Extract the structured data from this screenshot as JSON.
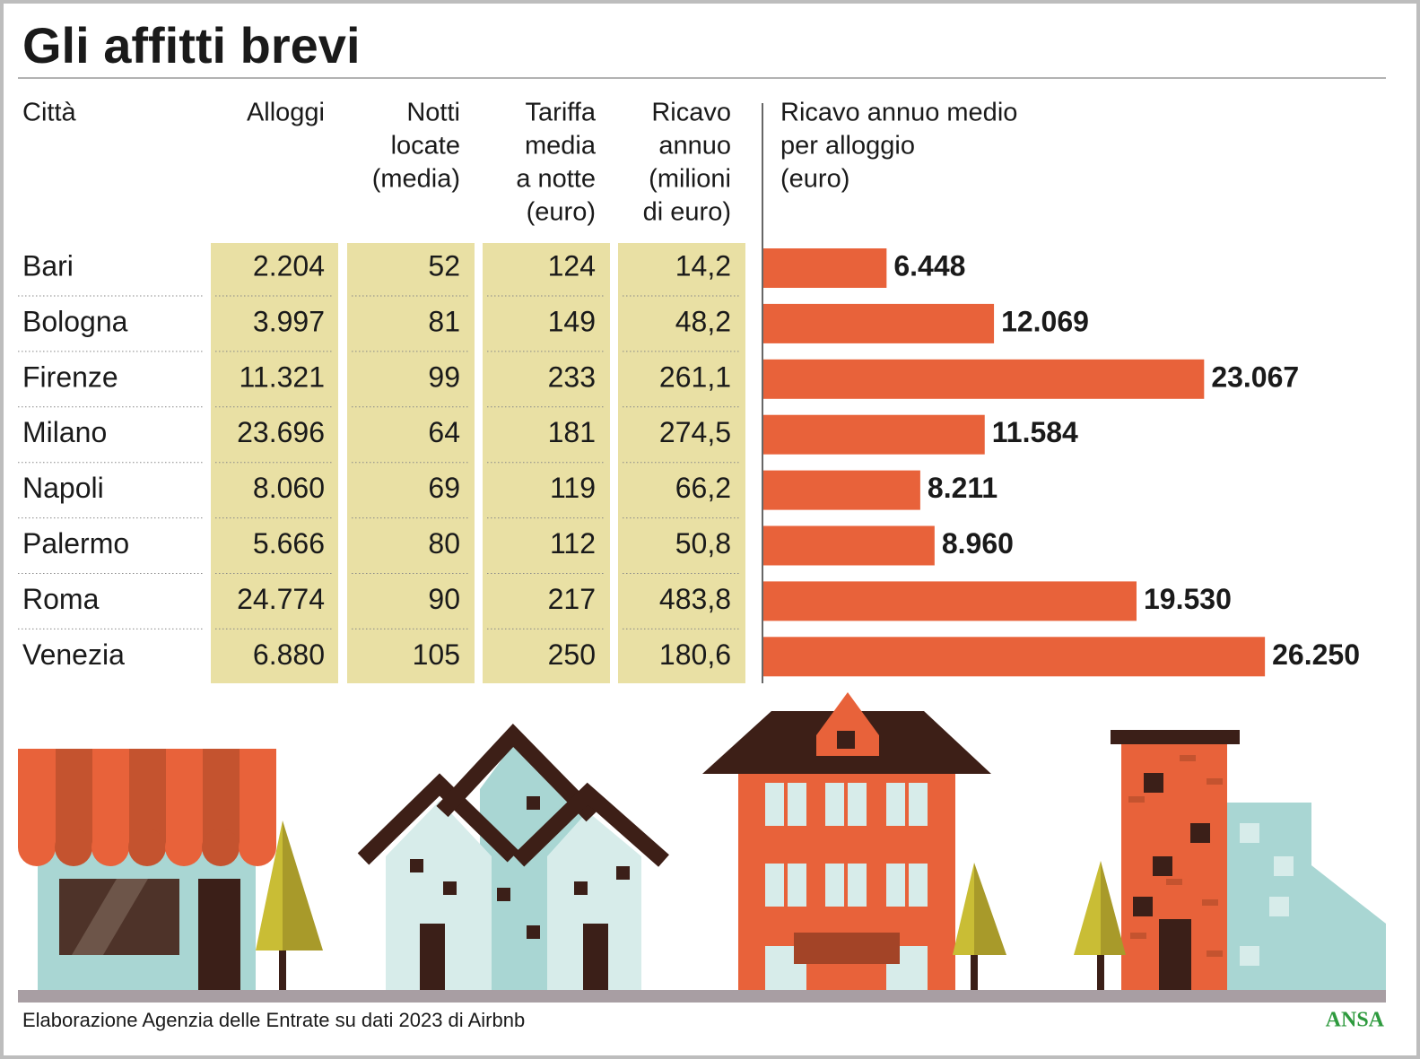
{
  "title": "Gli affitti brevi",
  "table": {
    "headers": [
      [
        "Città"
      ],
      [
        "Alloggi"
      ],
      [
        "Notti",
        "locate",
        "(media)"
      ],
      [
        "Tariffa",
        "media",
        "a notte",
        "(euro)"
      ],
      [
        "Ricavo",
        "annuo",
        "(milioni",
        "di euro)"
      ]
    ],
    "rows": [
      [
        "2.204",
        "52",
        "124",
        "14,2"
      ],
      [
        "3.997",
        "81",
        "149",
        "48,2"
      ],
      [
        "11.321",
        "99",
        "233",
        "261,1"
      ],
      [
        "23.696",
        "64",
        "181",
        "274,5"
      ],
      [
        "8.060",
        "69",
        "119",
        "66,2"
      ],
      [
        "5.666",
        "80",
        "112",
        "50,8"
      ],
      [
        "24.774",
        "90",
        "217",
        "483,8"
      ],
      [
        "6.880",
        "105",
        "250",
        "180,6"
      ]
    ]
  },
  "chart_data": {
    "type": "bar",
    "orientation": "horizontal",
    "title": [
      "Ricavo annuo medio",
      "per alloggio",
      "(euro)"
    ],
    "categories": [
      "Bari",
      "Bologna",
      "Firenze",
      "Milano",
      "Napoli",
      "Palermo",
      "Roma",
      "Venezia"
    ],
    "values": [
      6448,
      12069,
      23067,
      11584,
      8211,
      8960,
      19530,
      26250
    ],
    "value_labels": [
      "6.448",
      "12.069",
      "23.067",
      "11.584",
      "8.211",
      "8.960",
      "19.530",
      "26.250"
    ],
    "color": "#e8623a",
    "xlim": [
      0,
      30000
    ]
  },
  "source": "Elaborazione Agenzia delle Entrate su dati 2023 di Airbnb",
  "logo": "ANSA"
}
